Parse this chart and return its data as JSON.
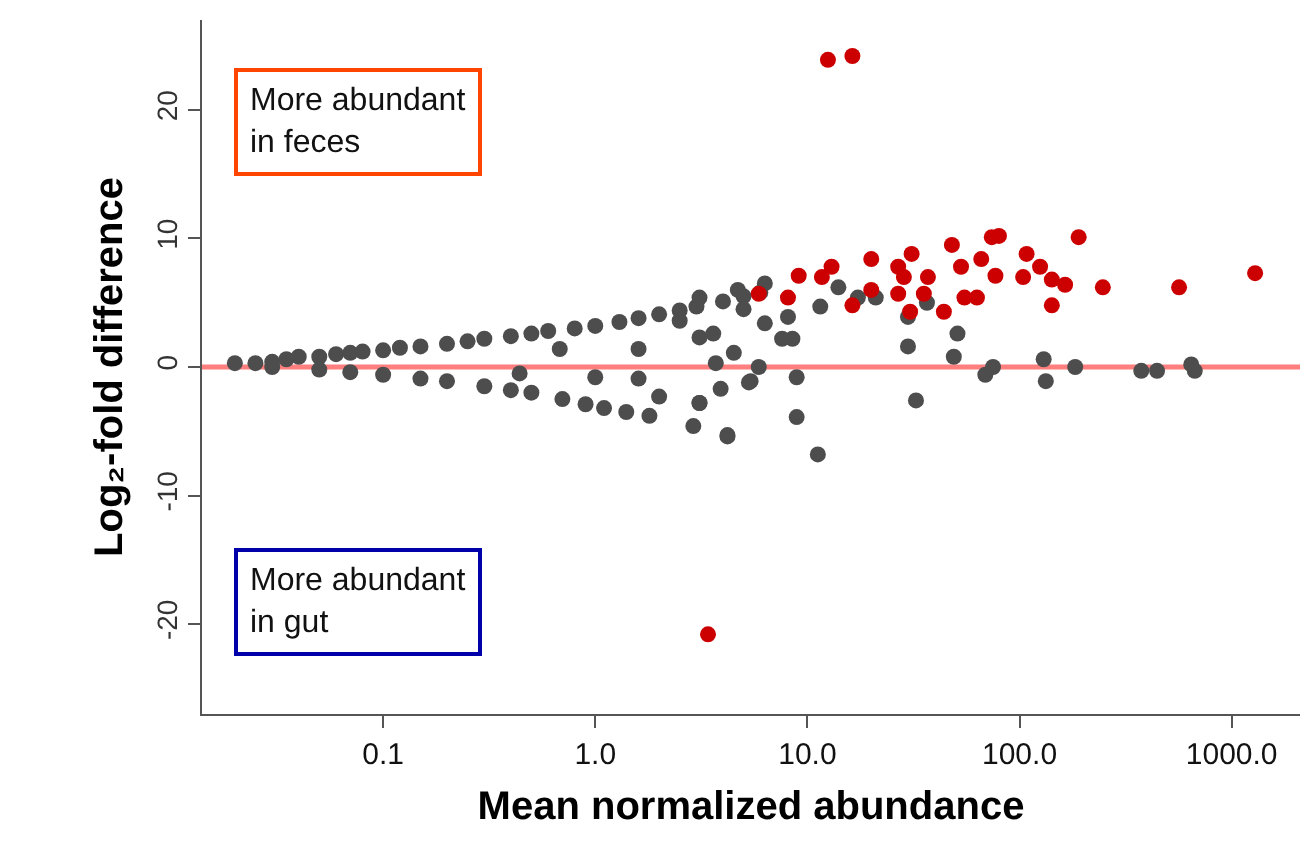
{
  "chart_data": {
    "type": "scatter",
    "xlabel": "Mean normalized abundance",
    "ylabel": "Log₂-fold difference",
    "log": "x",
    "xlim": [
      0.014,
      2100
    ],
    "ylim": [
      -27,
      27
    ],
    "xticks": [
      0.1,
      {
        "value": 1,
        "label": "1.0"
      },
      {
        "value": 10,
        "label": "10.0"
      },
      {
        "value": 100,
        "label": "100.0"
      },
      {
        "value": 1000,
        "label": "1000.0"
      }
    ],
    "yticks": [
      -20,
      -10,
      0,
      10,
      20
    ],
    "grid": false,
    "marker": "circle",
    "annotations": [
      "More abundant\nin feces",
      "More abundant\nin gut"
    ],
    "ref_lines": [
      {
        "axis": "y",
        "value": 0,
        "color": "#ff7f7f"
      }
    ],
    "series": [
      {
        "color": "#4d4d4d",
        "x": [
          0.02,
          0.025,
          0.03,
          0.035,
          0.04,
          0.05,
          0.06,
          0.07,
          0.08,
          0.1,
          0.12,
          0.15,
          0.2,
          0.25,
          0.3,
          0.4,
          0.5,
          0.6,
          0.8,
          1.0,
          1.3,
          1.6,
          2,
          2.5,
          3,
          4,
          5,
          6,
          0.03,
          0.05,
          0.07,
          0.1,
          0.15,
          0.2,
          0.3,
          0.4,
          0.5,
          0.7,
          0.9,
          1.1,
          1.4,
          1.8,
          2.9,
          4.2,
          2.5,
          3.7,
          1.0,
          1.6,
          2.0,
          3.1,
          5.4,
          1.6,
          0.68,
          0.44,
          3.1,
          3.6,
          5.0,
          3.1,
          3.9,
          5.3,
          4.5,
          5.9,
          4.2,
          8.9,
          8.9,
          11.2,
          8.5,
          7.6,
          6.3,
          8.1,
          11.5,
          14,
          17.3,
          21,
          29.8,
          29.8,
          32.5,
          36.6,
          51,
          49,
          69,
          75,
          130,
          133,
          183,
          375,
          445,
          645,
          670,
          3.1,
          4.7,
          6.3
        ],
        "values": [
          0.3,
          0.3,
          0.4,
          0.6,
          0.8,
          0.8,
          1.0,
          1.1,
          1.2,
          1.3,
          1.5,
          1.6,
          1.8,
          2.0,
          2.2,
          2.4,
          2.6,
          2.8,
          3.0,
          3.2,
          3.5,
          3.8,
          4.1,
          4.4,
          4.7,
          5.1,
          5.5,
          5.8,
          0.0,
          -0.2,
          -0.4,
          -0.6,
          -0.9,
          -1.1,
          -1.5,
          -1.8,
          -2.0,
          -2.5,
          -2.9,
          -3.2,
          -3.5,
          -3.8,
          -4.6,
          -5.3,
          3.6,
          0.3,
          -0.8,
          -0.9,
          -2.3,
          -2.8,
          -1.1,
          1.4,
          1.4,
          -0.5,
          2.3,
          2.6,
          4.5,
          -2.8,
          -1.7,
          -1.2,
          1.1,
          0.0,
          -5.4,
          -3.9,
          -0.8,
          -6.8,
          2.2,
          2.2,
          3.4,
          3.9,
          4.7,
          6.2,
          5.4,
          5.4,
          1.6,
          3.9,
          -2.6,
          5.0,
          2.6,
          0.8,
          -0.6,
          0.0,
          0.6,
          -1.1,
          0.0,
          -0.3,
          -0.3,
          0.2,
          -0.3,
          5.4,
          6.0,
          6.5
        ]
      },
      {
        "color": "#cc0000",
        "x": [
          5.9,
          9.1,
          13,
          20,
          31,
          48,
          80,
          74,
          16.3,
          20,
          26.8,
          30.5,
          37,
          35.4,
          44,
          53,
          55,
          63,
          66,
          77,
          108,
          104,
          125,
          142,
          142,
          164,
          190,
          247,
          565,
          1290,
          12.5,
          16.3,
          11.7,
          8.1,
          28.5,
          26.8,
          3.4
        ],
        "values": [
          5.7,
          7.1,
          7.8,
          8.4,
          8.8,
          9.5,
          10.2,
          10.1,
          4.8,
          6.0,
          5.7,
          4.3,
          7.0,
          5.7,
          4.3,
          7.8,
          5.4,
          5.4,
          8.4,
          7.1,
          8.8,
          7.0,
          7.8,
          6.8,
          4.8,
          6.4,
          10.1,
          6.2,
          6.2,
          7.3,
          23.9,
          24.2,
          7.0,
          5.4,
          7.0,
          7.8,
          -20.8
        ]
      }
    ]
  }
}
